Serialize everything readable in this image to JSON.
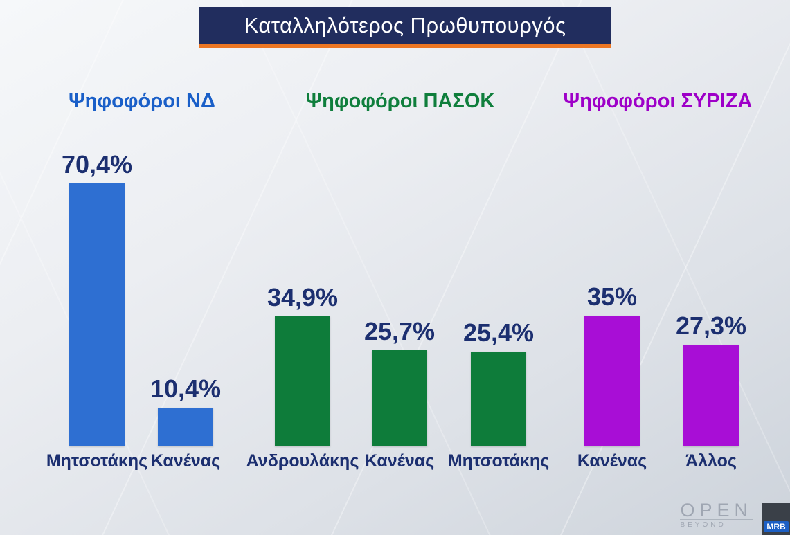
{
  "title": "Καταλληλότερος Πρωθυπουργός",
  "chart_data": {
    "type": "bar",
    "title": "Καταλληλότερος Πρωθυπουργός",
    "value_suffix": "%",
    "ylim": [
      0,
      80
    ],
    "grid": false,
    "label_color": "#1c2f70",
    "groups": [
      {
        "label": "Ψηφοφόροι ΝΔ",
        "header_color": "#1a5fc8",
        "bar_color": "#2e6fd2",
        "bars": [
          {
            "category": "Μητσοτάκης",
            "value": 70.4,
            "display": "70,4%"
          },
          {
            "category": "Κανένας",
            "value": 10.4,
            "display": "10,4%"
          }
        ]
      },
      {
        "label": "Ψηφοφόροι ΠΑΣΟΚ",
        "header_color": "#0f7e3c",
        "bar_color": "#0e7c3a",
        "bars": [
          {
            "category": "Ανδρουλάκης",
            "value": 34.9,
            "display": "34,9%"
          },
          {
            "category": "Κανένας",
            "value": 25.7,
            "display": "25,7%"
          },
          {
            "category": "Μητσοτάκης",
            "value": 25.4,
            "display": "25,4%"
          }
        ]
      },
      {
        "label": "Ψηφοφόροι ΣΥΡΙΖΑ",
        "header_color": "#9e00c8",
        "bar_color": "#a80ed6",
        "bars": [
          {
            "category": "Κανένας",
            "value": 35,
            "display": "35%"
          },
          {
            "category": "Άλλος",
            "value": 27.3,
            "display": "27,3%"
          }
        ]
      }
    ]
  },
  "branding": {
    "open": "OPEN",
    "open_sub": "BEYOND",
    "mrb": "MRB"
  }
}
